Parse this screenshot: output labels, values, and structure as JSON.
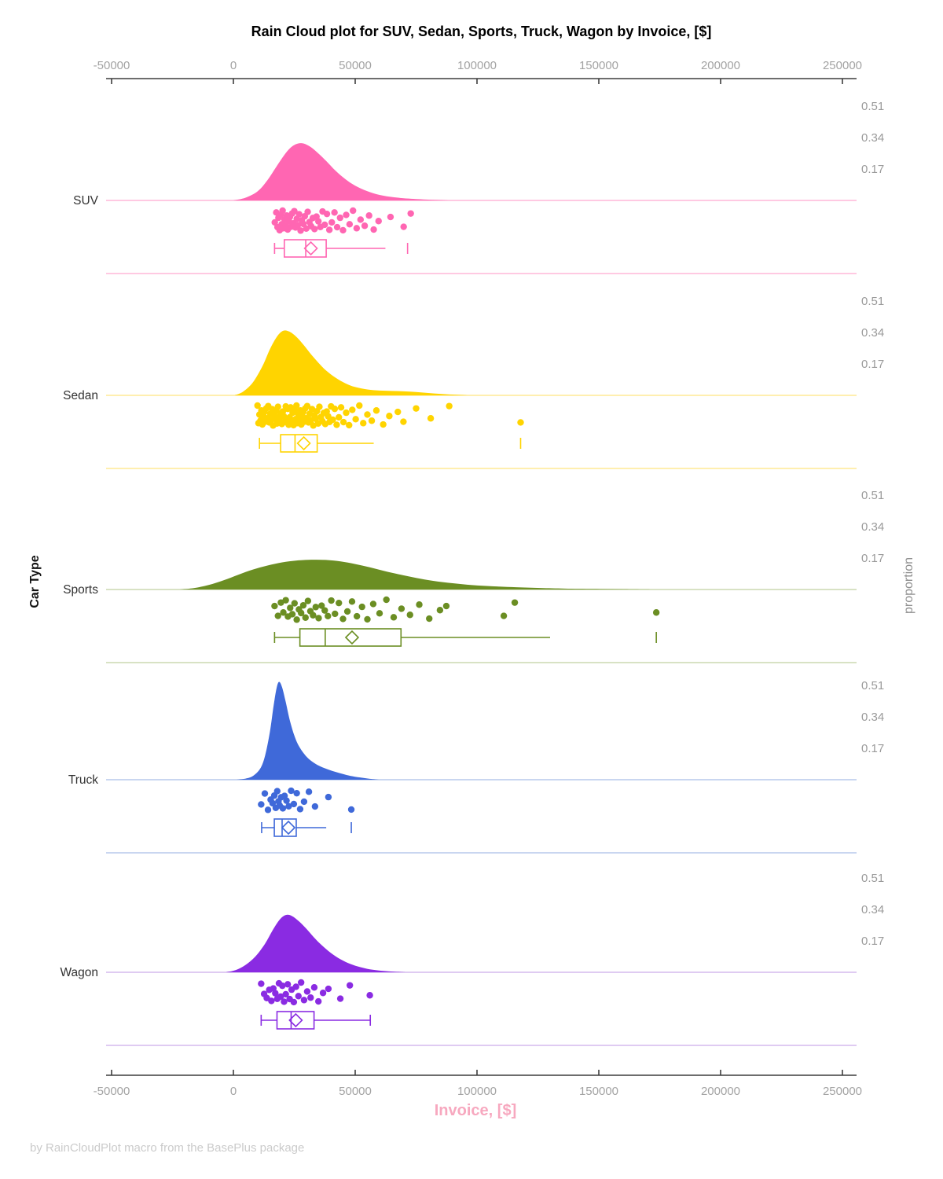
{
  "page": {
    "background": "#ffffff"
  },
  "chart_data": {
    "type": "raincloud",
    "title": "Rain Cloud plot for SUV, Sedan, Sports, Truck, Wagon by Invoice, [$]",
    "xlabel": "Invoice, [$]",
    "ylabel_left": "Car Type",
    "ylabel_right": "proportion",
    "footer": "by RainCloudPlot macro from the BasePlus package",
    "x_ticks": [
      -50000,
      0,
      50000,
      100000,
      150000,
      200000,
      250000
    ],
    "x_range": [
      -52500,
      255000
    ],
    "proportion_ticks": [
      0.51,
      0.34,
      0.17
    ],
    "legend_position": "none",
    "grid": false,
    "axis_color": "#3d3d3d",
    "tick_label_color": "#a3a3a3",
    "proportion_label_color": "#9a9a9a",
    "category_label_color": "#333333",
    "title_color": "#000000",
    "xlabel_color": "#f7a8bf",
    "footer_color": "#cbcbcb",
    "jitter_pattern": [
      0.15,
      -0.82,
      0.62,
      -0.3,
      0.92,
      -0.58,
      0.33,
      -1.0,
      0.72,
      -0.12,
      0.48,
      -0.52,
      0.85,
      0.02,
      -0.38,
      0.58,
      -0.72,
      0.25,
      -0.95,
      0.65,
      -0.2,
      0.42,
      -0.65,
      0.95,
      -0.05,
      0.3,
      -0.45,
      0.75,
      -0.88,
      0.12,
      0.52,
      -0.28,
      0.8,
      -0.42,
      0.05,
      0.6,
      -0.92,
      0.38,
      -0.68,
      0.88
    ],
    "series": [
      {
        "name": "SUV",
        "color": "#FF66B2",
        "light_color": "#FFC9E2",
        "density": [
          [
            0,
            0
          ],
          [
            5000,
            0.015
          ],
          [
            10000,
            0.05
          ],
          [
            14000,
            0.11
          ],
          [
            18000,
            0.19
          ],
          [
            22000,
            0.265
          ],
          [
            25000,
            0.3
          ],
          [
            28000,
            0.31
          ],
          [
            31000,
            0.295
          ],
          [
            34000,
            0.265
          ],
          [
            38000,
            0.215
          ],
          [
            42000,
            0.16
          ],
          [
            46000,
            0.115
          ],
          [
            50000,
            0.08
          ],
          [
            55000,
            0.05
          ],
          [
            60000,
            0.03
          ],
          [
            66000,
            0.017
          ],
          [
            72000,
            0.01
          ],
          [
            80000,
            0.004
          ],
          [
            88000,
            0
          ]
        ],
        "points": [
          17000,
          17600,
          18100,
          18500,
          19000,
          19400,
          19800,
          20200,
          20600,
          21000,
          21500,
          21900,
          22300,
          22800,
          23200,
          23700,
          24100,
          24600,
          25000,
          25500,
          26000,
          26500,
          27000,
          27600,
          28100,
          28700,
          29300,
          29900,
          30500,
          31200,
          31900,
          32600,
          33300,
          34100,
          34900,
          35700,
          36600,
          37500,
          38400,
          39400,
          40400,
          41500,
          42600,
          43800,
          45000,
          46300,
          47700,
          49100,
          50600,
          52200,
          53900,
          55700,
          57600,
          59600,
          64500,
          69900,
          72800
        ],
        "box": {
          "low": 16900,
          "q1": 20900,
          "median": 29700,
          "q3": 38100,
          "high": 62400,
          "mean": 31800,
          "outliers": [
            71500
          ],
          "high_cap": false
        }
      },
      {
        "name": "Sedan",
        "color": "#FFD400",
        "light_color": "#FFEFAF",
        "density": [
          [
            500,
            0
          ],
          [
            4000,
            0.02
          ],
          [
            8000,
            0.07
          ],
          [
            12000,
            0.16
          ],
          [
            15000,
            0.25
          ],
          [
            18000,
            0.32
          ],
          [
            20500,
            0.35
          ],
          [
            23000,
            0.345
          ],
          [
            26000,
            0.315
          ],
          [
            29000,
            0.27
          ],
          [
            32000,
            0.22
          ],
          [
            35000,
            0.175
          ],
          [
            38000,
            0.135
          ],
          [
            42000,
            0.095
          ],
          [
            46000,
            0.065
          ],
          [
            50000,
            0.045
          ],
          [
            55000,
            0.032
          ],
          [
            60000,
            0.026
          ],
          [
            65000,
            0.024
          ],
          [
            70000,
            0.022
          ],
          [
            75000,
            0.018
          ],
          [
            80000,
            0.013
          ],
          [
            85000,
            0.008
          ],
          [
            90000,
            0.004
          ],
          [
            96000,
            0
          ]
        ],
        "points": [
          9900,
          10300,
          10700,
          11100,
          11500,
          11900,
          12300,
          12700,
          13100,
          13500,
          13900,
          14300,
          14700,
          15100,
          15500,
          15900,
          16300,
          16700,
          17100,
          17500,
          17900,
          18300,
          18700,
          19100,
          19500,
          19900,
          20300,
          20700,
          21100,
          21500,
          21900,
          22300,
          22700,
          23100,
          23500,
          23900,
          24300,
          24700,
          25100,
          25500,
          25900,
          26300,
          26700,
          27100,
          27500,
          27900,
          28300,
          28700,
          29100,
          29500,
          29900,
          30300,
          30800,
          31300,
          31800,
          32300,
          32800,
          33300,
          33800,
          34300,
          34800,
          35300,
          35900,
          36500,
          37100,
          37700,
          38300,
          38900,
          39500,
          40100,
          40800,
          41600,
          42400,
          43300,
          44200,
          45200,
          46300,
          47500,
          48800,
          50200,
          51700,
          53300,
          55000,
          56800,
          58700,
          61500,
          64000,
          67500,
          69800,
          75000,
          81000,
          88600,
          117900
        ],
        "box": {
          "low": 10700,
          "q1": 19400,
          "median": 25300,
          "q3": 34400,
          "high": 57600,
          "mean": 28900,
          "outliers": [
            117900
          ],
          "high_cap": false
        }
      },
      {
        "name": "Sports",
        "color": "#6B8E23",
        "light_color": "#D8E2C4",
        "density": [
          [
            -22000,
            0
          ],
          [
            -16000,
            0.008
          ],
          [
            -10000,
            0.025
          ],
          [
            -4000,
            0.05
          ],
          [
            2000,
            0.08
          ],
          [
            8000,
            0.108
          ],
          [
            14000,
            0.13
          ],
          [
            20000,
            0.147
          ],
          [
            26000,
            0.157
          ],
          [
            32000,
            0.161
          ],
          [
            38000,
            0.16
          ],
          [
            44000,
            0.152
          ],
          [
            50000,
            0.138
          ],
          [
            56000,
            0.12
          ],
          [
            62000,
            0.1
          ],
          [
            68000,
            0.082
          ],
          [
            75000,
            0.063
          ],
          [
            82000,
            0.047
          ],
          [
            90000,
            0.034
          ],
          [
            98000,
            0.024
          ],
          [
            107000,
            0.017
          ],
          [
            116000,
            0.012
          ],
          [
            126000,
            0.008
          ],
          [
            136000,
            0.005
          ],
          [
            148000,
            0.003
          ],
          [
            160000,
            0.0015
          ],
          [
            172000,
            0
          ]
        ],
        "points": [
          16900,
          18300,
          19500,
          20500,
          21500,
          22400,
          23300,
          24200,
          25100,
          26000,
          26900,
          27800,
          28700,
          29600,
          30600,
          31600,
          32700,
          33800,
          35000,
          36200,
          37500,
          38800,
          40200,
          41700,
          43300,
          45000,
          46800,
          48700,
          50700,
          52800,
          55000,
          57400,
          60000,
          62800,
          65800,
          69000,
          72500,
          76300,
          80400,
          84800,
          87400,
          111000,
          115500,
          173600
        ],
        "box": {
          "low": 16900,
          "q1": 27300,
          "median": 37700,
          "q3": 68800,
          "high": 130000,
          "mean": 48700,
          "outliers": [
            173600
          ],
          "high_cap": false
        }
      },
      {
        "name": "Truck",
        "color": "#3F69D9",
        "light_color": "#C9D6F0",
        "density": [
          [
            1000,
            0
          ],
          [
            5000,
            0.006
          ],
          [
            8000,
            0.02
          ],
          [
            11000,
            0.06
          ],
          [
            13000,
            0.13
          ],
          [
            15000,
            0.26
          ],
          [
            16500,
            0.4
          ],
          [
            17800,
            0.5
          ],
          [
            18800,
            0.53
          ],
          [
            20000,
            0.5
          ],
          [
            21500,
            0.42
          ],
          [
            23000,
            0.33
          ],
          [
            25000,
            0.24
          ],
          [
            27000,
            0.18
          ],
          [
            30000,
            0.125
          ],
          [
            33000,
            0.092
          ],
          [
            36000,
            0.07
          ],
          [
            39000,
            0.055
          ],
          [
            42000,
            0.042
          ],
          [
            45000,
            0.031
          ],
          [
            48000,
            0.021
          ],
          [
            52000,
            0.012
          ],
          [
            56000,
            0.005
          ],
          [
            60000,
            0
          ]
        ],
        "points": [
          11400,
          12900,
          14200,
          15300,
          16100,
          16800,
          17400,
          18000,
          18500,
          19000,
          19600,
          20300,
          21000,
          21800,
          22700,
          23700,
          24800,
          26000,
          27400,
          29000,
          31000,
          33500,
          39000,
          48400
        ],
        "box": {
          "low": 11600,
          "q1": 16800,
          "median": 20000,
          "q3": 25800,
          "high": 38100,
          "mean": 22600,
          "outliers": [
            48400
          ],
          "high_cap": false
        }
      },
      {
        "name": "Wagon",
        "color": "#8A2BE2",
        "light_color": "#DFCBF2",
        "density": [
          [
            -3000,
            0
          ],
          [
            1000,
            0.012
          ],
          [
            5000,
            0.04
          ],
          [
            9000,
            0.085
          ],
          [
            13000,
            0.155
          ],
          [
            16000,
            0.225
          ],
          [
            19000,
            0.285
          ],
          [
            21500,
            0.31
          ],
          [
            24000,
            0.305
          ],
          [
            27000,
            0.275
          ],
          [
            30000,
            0.235
          ],
          [
            33000,
            0.19
          ],
          [
            36000,
            0.15
          ],
          [
            40000,
            0.105
          ],
          [
            44000,
            0.07
          ],
          [
            48000,
            0.045
          ],
          [
            52000,
            0.028
          ],
          [
            56000,
            0.016
          ],
          [
            61000,
            0.008
          ],
          [
            66000,
            0.003
          ],
          [
            71000,
            0
          ]
        ],
        "points": [
          11400,
          12600,
          13700,
          14700,
          15600,
          16400,
          17200,
          18000,
          18700,
          19400,
          20100,
          20800,
          21500,
          22300,
          23100,
          23900,
          24800,
          25700,
          26700,
          27800,
          29000,
          30300,
          31700,
          33200,
          34900,
          36800,
          39000,
          43900,
          47800,
          56000
        ],
        "box": {
          "low": 11400,
          "q1": 17900,
          "median": 23700,
          "q3": 33100,
          "high": 56200,
          "mean": 25600,
          "outliers": [],
          "high_cap": true
        }
      }
    ]
  }
}
